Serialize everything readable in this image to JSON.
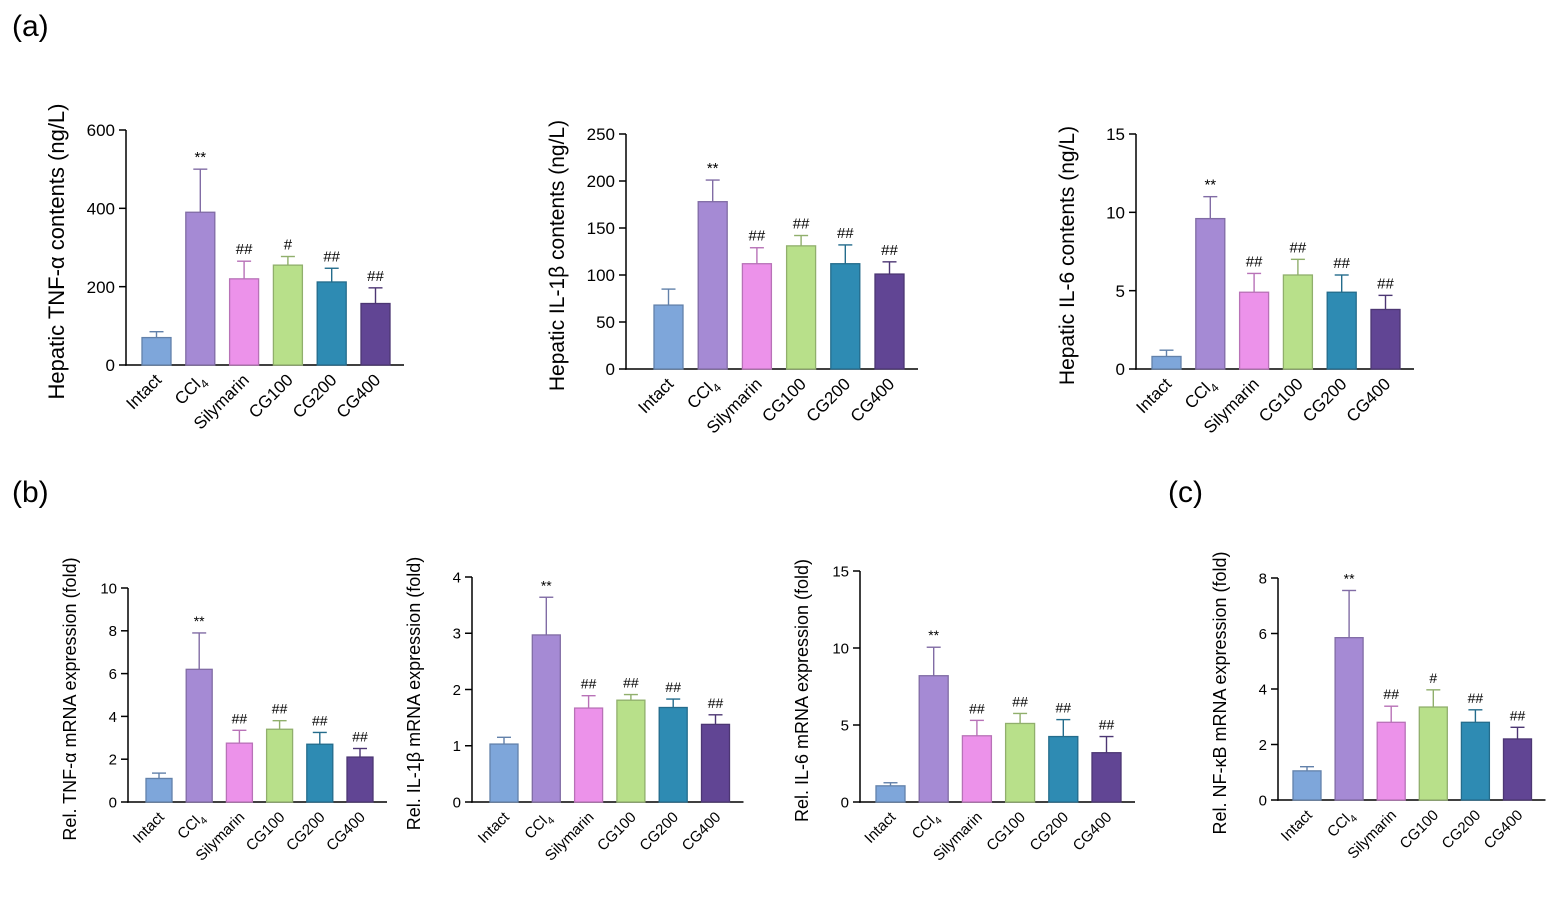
{
  "panel_labels": [
    "(a)",
    "(b)",
    "(c)"
  ],
  "colors": {
    "Intact": "#7ea6da",
    "CCl4": "#a58ad4",
    "Silymarin": "#ec92ea",
    "CG100": "#b8e08a",
    "CG200": "#2e8bb3",
    "CG400": "#614594"
  },
  "chart_data": [
    {
      "type": "bar",
      "categories": [
        "Intact",
        "CCl4",
        "Silymarin",
        "CG100",
        "CG200",
        "CG400"
      ],
      "values": [
        70,
        390,
        220,
        255,
        212,
        157
      ],
      "errors": [
        15,
        110,
        45,
        22,
        35,
        40
      ],
      "annotations": [
        "",
        "**",
        "##",
        "#",
        "##",
        "##"
      ],
      "ylabel": "Hepatic TNF-α contents (ng/L)",
      "ylim": [
        0,
        600
      ],
      "yticks": [
        0,
        200,
        400,
        600
      ]
    },
    {
      "type": "bar",
      "categories": [
        "Intact",
        "CCl4",
        "Silymarin",
        "CG100",
        "CG200",
        "CG400"
      ],
      "values": [
        68,
        178,
        112,
        131,
        112,
        101
      ],
      "errors": [
        17,
        23,
        17,
        11,
        20,
        13
      ],
      "annotations": [
        "",
        "**",
        "##",
        "##",
        "##",
        "##"
      ],
      "ylabel": "Hepatic IL-1β contents (ng/L)",
      "ylim": [
        0,
        250
      ],
      "yticks": [
        0,
        50,
        100,
        150,
        200,
        250
      ]
    },
    {
      "type": "bar",
      "categories": [
        "Intact",
        "CCl4",
        "Silymarin",
        "CG100",
        "CG200",
        "CG400"
      ],
      "values": [
        0.8,
        9.6,
        4.9,
        6.0,
        4.9,
        3.8
      ],
      "errors": [
        0.4,
        1.4,
        1.2,
        1.0,
        1.1,
        0.9
      ],
      "annotations": [
        "",
        "**",
        "##",
        "##",
        "##",
        "##"
      ],
      "ylabel": "Hepatic IL-6 contents (ng/L)",
      "ylim": [
        0,
        15
      ],
      "yticks": [
        0,
        5,
        10,
        15
      ]
    },
    {
      "type": "bar",
      "categories": [
        "Intact",
        "CCl4",
        "Silymarin",
        "CG100",
        "CG200",
        "CG400"
      ],
      "values": [
        1.1,
        6.2,
        2.75,
        3.4,
        2.7,
        2.1
      ],
      "errors": [
        0.25,
        1.7,
        0.6,
        0.4,
        0.55,
        0.4
      ],
      "annotations": [
        "",
        "**",
        "##",
        "##",
        "##",
        "##"
      ],
      "ylabel": "Rel. TNF-α mRNA expression (fold)",
      "ylim": [
        0,
        10
      ],
      "yticks": [
        0,
        2,
        4,
        6,
        8,
        10
      ]
    },
    {
      "type": "bar",
      "categories": [
        "Intact",
        "CCl4",
        "Silymarin",
        "CG100",
        "CG200",
        "CG400"
      ],
      "values": [
        1.03,
        2.97,
        1.67,
        1.81,
        1.68,
        1.38
      ],
      "errors": [
        0.12,
        0.67,
        0.22,
        0.1,
        0.15,
        0.17
      ],
      "annotations": [
        "",
        "**",
        "##",
        "##",
        "##",
        "##"
      ],
      "ylabel": "Rel. IL-1β mRNA expression (fold)",
      "ylim": [
        0,
        4
      ],
      "yticks": [
        0,
        1,
        2,
        3,
        4
      ]
    },
    {
      "type": "bar",
      "categories": [
        "Intact",
        "CCl4",
        "Silymarin",
        "CG100",
        "CG200",
        "CG400"
      ],
      "values": [
        1.05,
        8.2,
        4.3,
        5.1,
        4.25,
        3.2
      ],
      "errors": [
        0.2,
        1.85,
        1.0,
        0.65,
        1.1,
        1.05
      ],
      "annotations": [
        "",
        "**",
        "##",
        "##",
        "##",
        "##"
      ],
      "ylabel": "Rel. IL-6 mRNA expression (fold)",
      "ylim": [
        0,
        15
      ],
      "yticks": [
        0,
        5,
        10,
        15
      ]
    },
    {
      "type": "bar",
      "categories": [
        "Intact",
        "CCl4",
        "Silymarin",
        "CG100",
        "CG200",
        "CG400"
      ],
      "values": [
        1.05,
        5.85,
        2.8,
        3.35,
        2.8,
        2.2
      ],
      "errors": [
        0.15,
        1.7,
        0.58,
        0.62,
        0.45,
        0.42
      ],
      "annotations": [
        "",
        "**",
        "##",
        "#",
        "##",
        "##"
      ],
      "ylabel": "Rel. NF-κB mRNA expression (fold)",
      "ylim": [
        0,
        8
      ],
      "yticks": [
        0,
        2,
        4,
        6,
        8
      ]
    }
  ]
}
